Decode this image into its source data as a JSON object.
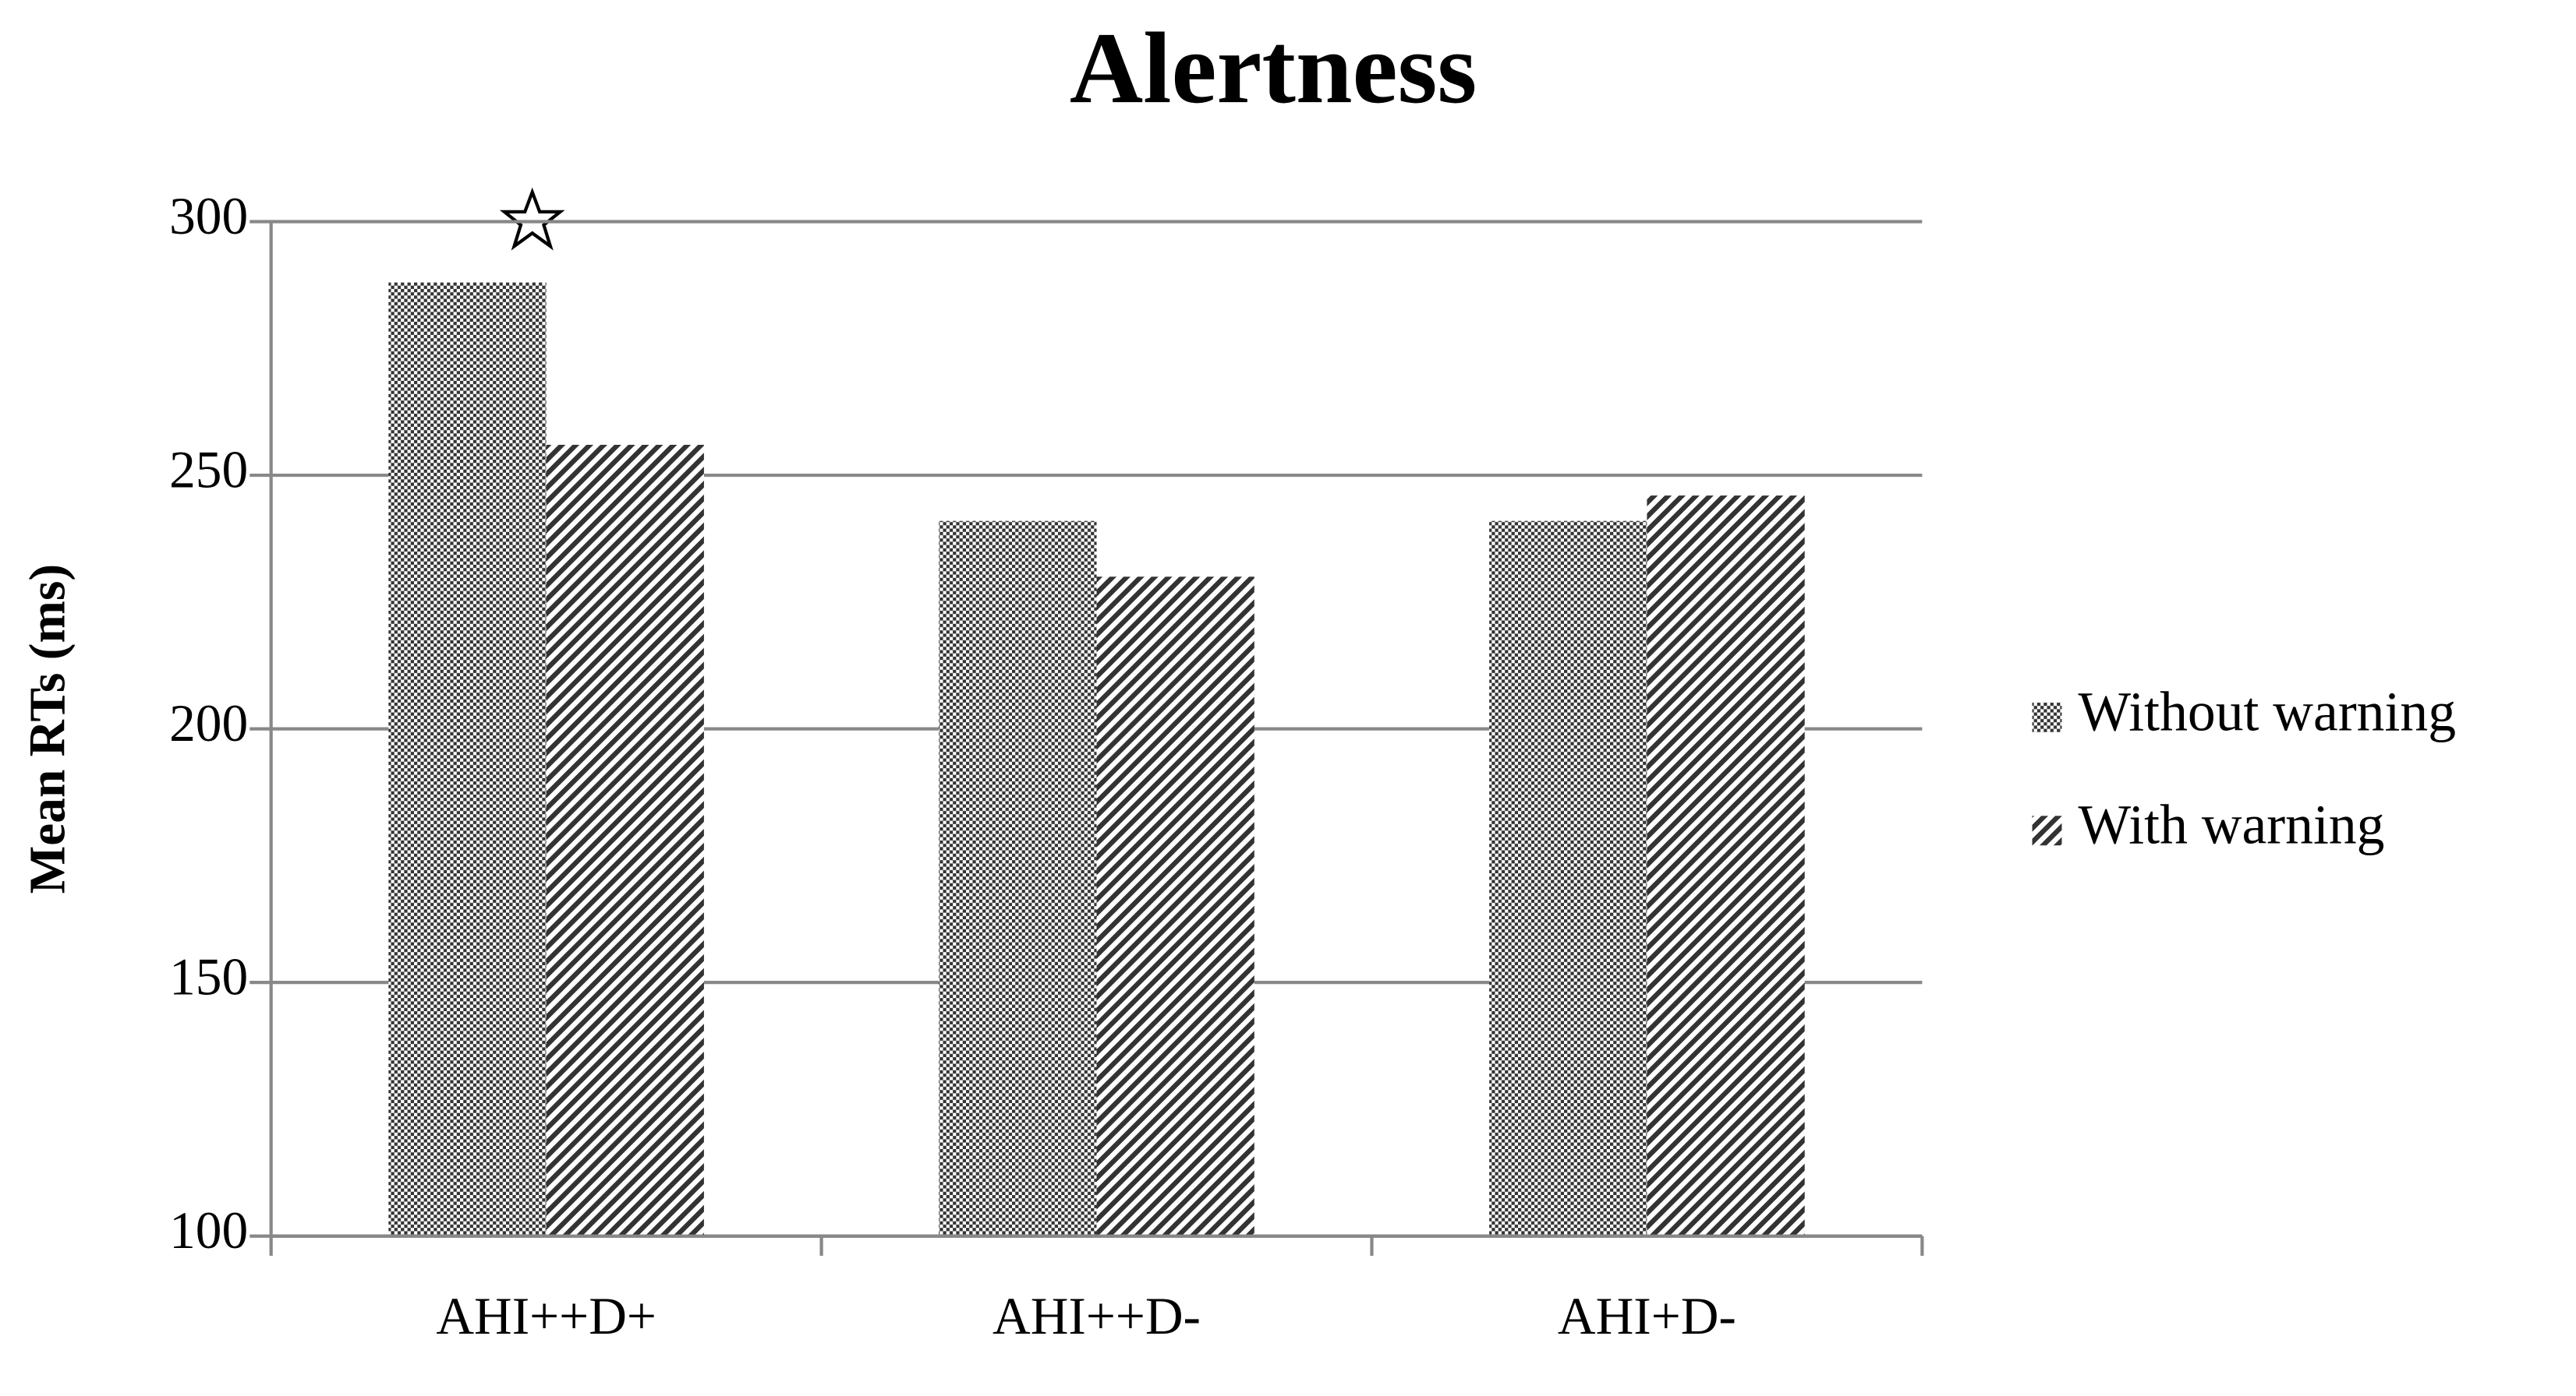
{
  "chart_data": {
    "type": "bar",
    "title": "Alertness",
    "y_label": "Mean RTs (ms)",
    "categories": [
      "AHI++D+",
      "AHI++D-",
      "AHI+D-"
    ],
    "series": [
      {
        "name": "Without warning",
        "color": "#333333",
        "pattern": "checker",
        "values": [
          288,
          241,
          241
        ]
      },
      {
        "name": "With warning",
        "color": "#333333",
        "pattern": "hatch",
        "values": [
          256,
          230,
          246
        ]
      }
    ],
    "ylim": [
      100,
      300
    ],
    "yticks": [
      100,
      150,
      200,
      250,
      300
    ],
    "grid": true,
    "legend": "right"
  }
}
